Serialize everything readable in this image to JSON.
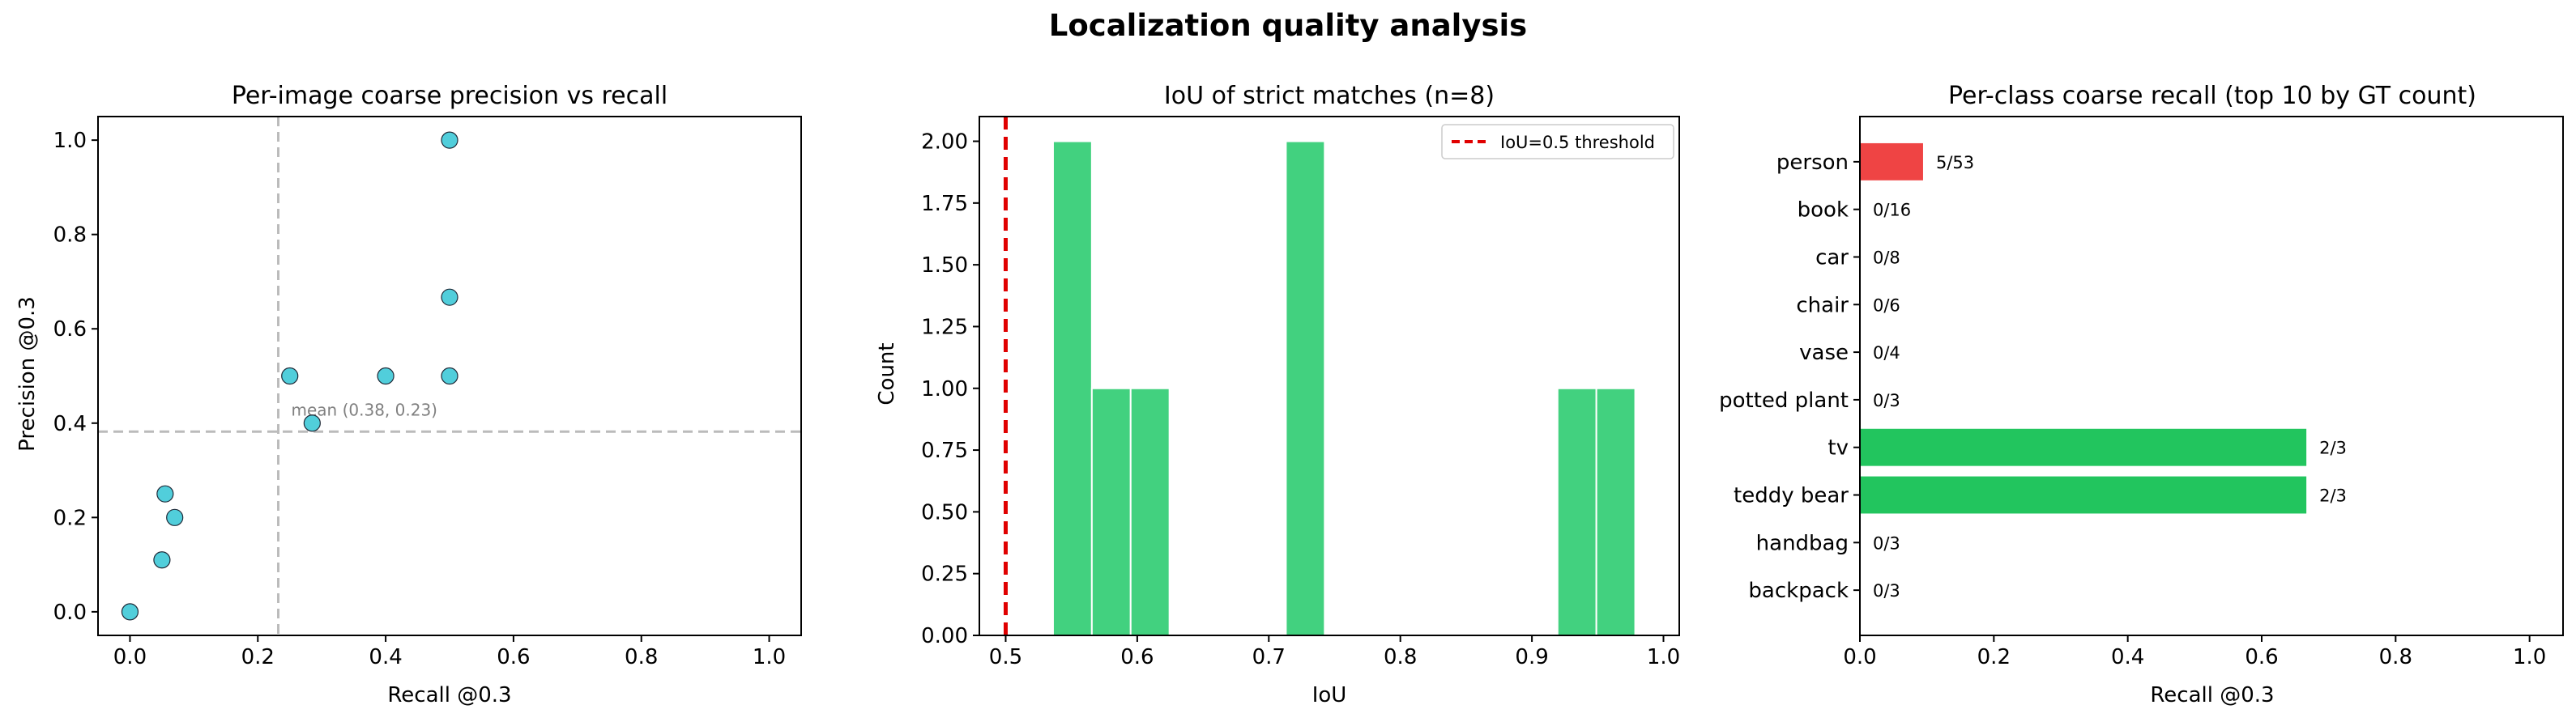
{
  "figure": {
    "title": "Localization quality analysis",
    "colors": {
      "scatter": "#17becf",
      "hist": "#2ecc71",
      "threshold": "#e00000",
      "bar_red": "#ef4444",
      "bar_green": "#22c55e",
      "guide": "#bbbbbb"
    }
  },
  "chart_data": [
    {
      "type": "scatter",
      "title": "Per-image coarse precision vs recall",
      "xlabel": "Recall @0.3",
      "ylabel": "Precision @0.3",
      "xlim": [
        -0.05,
        1.05
      ],
      "ylim": [
        -0.05,
        1.05
      ],
      "xticks": [
        "0.0",
        "0.2",
        "0.4",
        "0.6",
        "0.8",
        "1.0"
      ],
      "yticks": [
        "0.0",
        "0.2",
        "0.4",
        "0.6",
        "0.8",
        "1.0"
      ],
      "grid": false,
      "points": [
        {
          "x": 0.0,
          "y": 0.0
        },
        {
          "x": 0.05,
          "y": 0.11
        },
        {
          "x": 0.055,
          "y": 0.25
        },
        {
          "x": 0.07,
          "y": 0.2
        },
        {
          "x": 0.25,
          "y": 0.5
        },
        {
          "x": 0.285,
          "y": 0.4
        },
        {
          "x": 0.4,
          "y": 0.5
        },
        {
          "x": 0.5,
          "y": 0.5
        },
        {
          "x": 0.5,
          "y": 0.667
        },
        {
          "x": 0.5,
          "y": 1.0
        }
      ],
      "mean_lines": {
        "recall": 0.232,
        "precision": 0.382
      },
      "annotation": "mean (0.38, 0.23)"
    },
    {
      "type": "bar",
      "title": "IoU of strict matches (n=8)",
      "xlabel": "IoU",
      "ylabel": "Count",
      "xlim": [
        0.48,
        1.012
      ],
      "ylim": [
        0,
        2.1
      ],
      "xticks": [
        "0.5",
        "0.6",
        "0.7",
        "0.8",
        "0.9",
        "1.0"
      ],
      "yticks": [
        "0.00",
        "0.25",
        "0.50",
        "0.75",
        "1.00",
        "1.25",
        "1.50",
        "1.75",
        "2.00"
      ],
      "bins": [
        {
          "x0": 0.536,
          "x1": 0.5655,
          "count": 2
        },
        {
          "x0": 0.5655,
          "x1": 0.595,
          "count": 1
        },
        {
          "x0": 0.595,
          "x1": 0.6245,
          "count": 1
        },
        {
          "x0": 0.6245,
          "x1": 0.654,
          "count": 0
        },
        {
          "x0": 0.654,
          "x1": 0.6835,
          "count": 0
        },
        {
          "x0": 0.6835,
          "x1": 0.713,
          "count": 0
        },
        {
          "x0": 0.713,
          "x1": 0.7425,
          "count": 2
        },
        {
          "x0": 0.7425,
          "x1": 0.772,
          "count": 0
        },
        {
          "x0": 0.772,
          "x1": 0.8015,
          "count": 0
        },
        {
          "x0": 0.8015,
          "x1": 0.831,
          "count": 0
        },
        {
          "x0": 0.831,
          "x1": 0.8605,
          "count": 0
        },
        {
          "x0": 0.8605,
          "x1": 0.89,
          "count": 0
        },
        {
          "x0": 0.89,
          "x1": 0.9195,
          "count": 0
        },
        {
          "x0": 0.9195,
          "x1": 0.949,
          "count": 1
        },
        {
          "x0": 0.949,
          "x1": 0.9785,
          "count": 1
        }
      ],
      "threshold": {
        "x": 0.5,
        "label": "IoU=0.5 threshold"
      },
      "legend": "top-right"
    },
    {
      "type": "bar",
      "orientation": "horizontal",
      "title": "Per-class coarse recall (top 10 by GT count)",
      "xlabel": "Recall @0.3",
      "xlim": [
        0,
        1.05
      ],
      "xticks": [
        "0.0",
        "0.2",
        "0.4",
        "0.6",
        "0.8",
        "1.0"
      ],
      "categories": [
        "person",
        "book",
        "car",
        "chair",
        "vase",
        "potted plant",
        "tv",
        "teddy bear",
        "handbag",
        "backpack"
      ],
      "values": [
        0.0943,
        0,
        0,
        0,
        0,
        0,
        0.6667,
        0.6667,
        0,
        0
      ],
      "labels": [
        "5/53",
        "0/16",
        "0/8",
        "0/6",
        "0/4",
        "0/3",
        "2/3",
        "2/3",
        "0/3",
        "0/3"
      ],
      "bar_colors": [
        "red",
        "green",
        "green",
        "green",
        "green",
        "green",
        "green",
        "green",
        "green",
        "green"
      ]
    }
  ]
}
